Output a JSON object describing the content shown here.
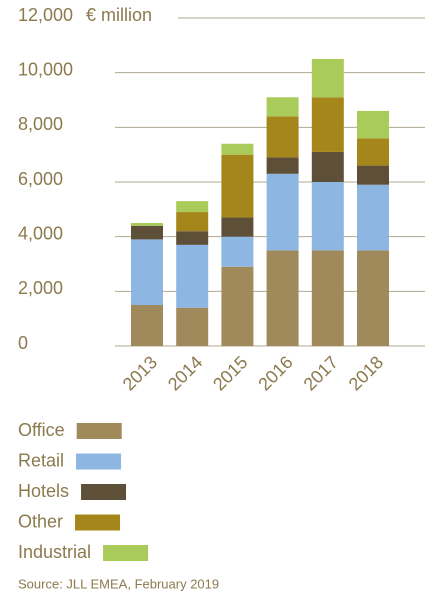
{
  "chart_data": {
    "type": "stacked_bar",
    "y_axis_label": "€ million",
    "source": "Source: JLL EMEA, February 2019",
    "categories": [
      "2013",
      "2014",
      "2015",
      "2016",
      "2017",
      "2018"
    ],
    "series": [
      {
        "name": "Office",
        "color": "#a08a5c",
        "values": [
          1500,
          1400,
          2900,
          3500,
          3500,
          3500
        ]
      },
      {
        "name": "Retail",
        "color": "#8db6e2",
        "values": [
          2400,
          2300,
          1100,
          2800,
          2500,
          2400
        ]
      },
      {
        "name": "Hotels",
        "color": "#5e5038",
        "values": [
          500,
          500,
          700,
          600,
          1100,
          700
        ]
      },
      {
        "name": "Other",
        "color": "#a5861a",
        "values": [
          0,
          700,
          2300,
          1500,
          2000,
          1000
        ]
      },
      {
        "name": "Industrial",
        "color": "#a8cb5a",
        "values": [
          100,
          400,
          400,
          700,
          1400,
          1000
        ]
      }
    ],
    "ylim": [
      0,
      12000
    ],
    "yticks": [
      0,
      {
        "value": 2000,
        "label": "2,000"
      },
      {
        "value": 4000,
        "label": "4,000"
      },
      {
        "value": 6000,
        "label": "6,000"
      },
      {
        "value": 8000,
        "label": "8,000"
      },
      {
        "value": 10000,
        "label": "10,000"
      },
      {
        "value": 12000,
        "label": "12,000"
      }
    ],
    "grid": true
  }
}
